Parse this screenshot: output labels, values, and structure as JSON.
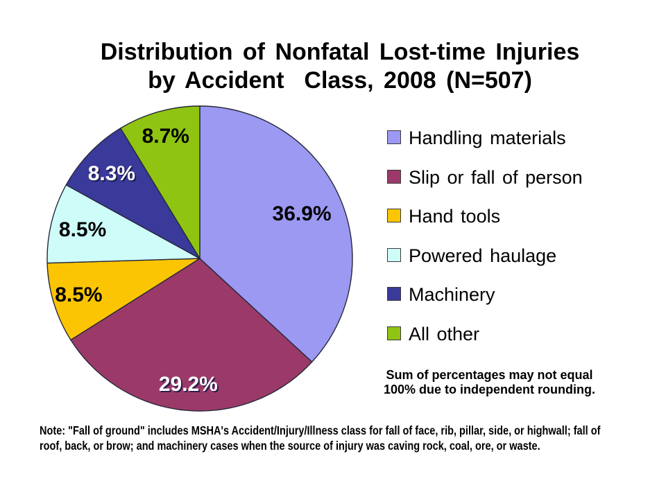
{
  "title": {
    "line1": "Distribution of Nonfatal Lost-time Injuries",
    "line2": "by Accident  Class, 2008 (N=507)"
  },
  "chart_data": {
    "type": "pie",
    "title": "Distribution of Nonfatal Lost-time Injuries by Accident Class, 2008 (N=507)",
    "n_total": 507,
    "year": "2008",
    "categories": [
      "Handling materials",
      "Slip or fall of person",
      "Hand tools",
      "Powered haulage",
      "Machinery",
      "All other"
    ],
    "values": [
      36.9,
      29.2,
      8.5,
      8.5,
      8.3,
      8.7
    ],
    "unit": "%",
    "labels": [
      "36.9%",
      "29.2%",
      "8.5%",
      "8.5%",
      "8.3%",
      "8.7%"
    ],
    "colors": [
      "#9C99F2",
      "#9B3A69",
      "#FBC503",
      "#CEFCF9",
      "#3A3A9B",
      "#8FC413"
    ],
    "label_colors": [
      "dark",
      "light",
      "dark",
      "dark",
      "light",
      "dark"
    ],
    "label_radius": [
      0.73,
      0.83,
      0.83,
      0.79,
      0.8,
      0.83
    ],
    "start_angle_deg": 0,
    "direction": "clockwise",
    "legend_position": "right",
    "outline_color": "#26263a"
  },
  "sum_note": "Sum of percentages may not equal 100% due to independent rounding.",
  "footnote_lines": [
    "Note: \"Fall of ground\" includes MSHA's Accident/Injury/Illness class for fall of face, rib, pillar, side, or highwall; fall of",
    "roof, back, or brow; and machinery cases when the source of injury was caving rock, coal, ore, or waste."
  ]
}
